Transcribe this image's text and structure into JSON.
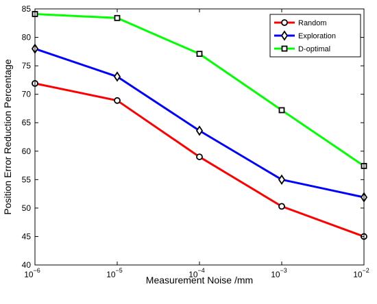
{
  "chart_data": {
    "type": "line",
    "xscale": "log",
    "x": [
      1e-06,
      1e-05,
      0.0001,
      0.001,
      0.01
    ],
    "xticks": [
      {
        "base": "10",
        "exp": "−6"
      },
      {
        "base": "10",
        "exp": "−5"
      },
      {
        "base": "10",
        "exp": "−4"
      },
      {
        "base": "10",
        "exp": "−3"
      },
      {
        "base": "10",
        "exp": "−2"
      }
    ],
    "ylim": [
      40,
      85
    ],
    "yticks": [
      40,
      45,
      50,
      55,
      60,
      65,
      70,
      75,
      80,
      85
    ],
    "xlabel": "Measurement Noise /mm",
    "ylabel": "Position Error Reduction Percentage",
    "grid": false,
    "legend_position": "top-right",
    "series": [
      {
        "name": "Random",
        "color": "#ff0000",
        "marker": "circle",
        "values": [
          71.9,
          68.9,
          59.0,
          50.3,
          45.0
        ]
      },
      {
        "name": "Exploration",
        "color": "#0000ff",
        "marker": "diamond",
        "values": [
          78.0,
          73.1,
          63.6,
          55.0,
          51.9
        ]
      },
      {
        "name": "D-optimal",
        "color": "#00ff00",
        "marker": "square",
        "values": [
          84.1,
          83.4,
          77.1,
          67.2,
          57.4
        ]
      }
    ]
  }
}
